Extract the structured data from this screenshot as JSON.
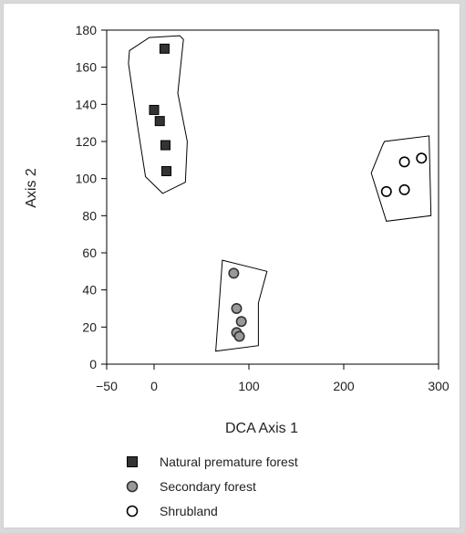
{
  "chart_data": {
    "type": "scatter",
    "title": "",
    "xlabel": "DCA Axis 1",
    "ylabel": "Axis 2",
    "xlim": [
      -50,
      300
    ],
    "ylim": [
      0,
      180
    ],
    "x_ticks": [
      -50,
      0,
      100,
      200,
      300
    ],
    "x_tick_labels": [
      "−50",
      "0",
      "100",
      "200",
      "300"
    ],
    "y_ticks": [
      0,
      20,
      40,
      60,
      80,
      100,
      120,
      140,
      160,
      180
    ],
    "y_tick_labels": [
      "0",
      "20",
      "40",
      "60",
      "80",
      "100",
      "120",
      "140",
      "160",
      "180"
    ],
    "grid": false,
    "legend_position": "bottom",
    "series": [
      {
        "name": "Natural premature forest",
        "marker": "square",
        "fill": "#333333",
        "stroke": "#000000",
        "points": [
          {
            "x": 11,
            "y": 170
          },
          {
            "x": 0,
            "y": 137
          },
          {
            "x": 6,
            "y": 131
          },
          {
            "x": 12,
            "y": 118
          },
          {
            "x": 13,
            "y": 104
          }
        ],
        "hull": [
          {
            "x": -26,
            "y": 169
          },
          {
            "x": -5,
            "y": 176
          },
          {
            "x": 27,
            "y": 177
          },
          {
            "x": 31,
            "y": 175
          },
          {
            "x": 25,
            "y": 146
          },
          {
            "x": 35,
            "y": 120
          },
          {
            "x": 33,
            "y": 98
          },
          {
            "x": 9,
            "y": 92
          },
          {
            "x": -9,
            "y": 101
          },
          {
            "x": -17,
            "y": 127
          },
          {
            "x": -27,
            "y": 162
          }
        ]
      },
      {
        "name": "Secondary forest",
        "marker": "circle",
        "fill": "#999999",
        "stroke": "#333333",
        "points": [
          {
            "x": 84,
            "y": 49
          },
          {
            "x": 87,
            "y": 30
          },
          {
            "x": 92,
            "y": 23
          },
          {
            "x": 87,
            "y": 17
          },
          {
            "x": 90,
            "y": 15
          }
        ],
        "hull": [
          {
            "x": 72,
            "y": 56
          },
          {
            "x": 119,
            "y": 50
          },
          {
            "x": 110,
            "y": 33
          },
          {
            "x": 110,
            "y": 10
          },
          {
            "x": 65,
            "y": 7
          }
        ]
      },
      {
        "name": "Shrubland",
        "marker": "circle",
        "fill": "#ffffff",
        "stroke": "#000000",
        "points": [
          {
            "x": 282,
            "y": 111
          },
          {
            "x": 264,
            "y": 109
          },
          {
            "x": 264,
            "y": 94
          },
          {
            "x": 245,
            "y": 93
          }
        ],
        "hull": [
          {
            "x": 229,
            "y": 103
          },
          {
            "x": 241,
            "y": 118
          },
          {
            "x": 243,
            "y": 120
          },
          {
            "x": 290,
            "y": 123
          },
          {
            "x": 292,
            "y": 80
          },
          {
            "x": 245,
            "y": 77
          }
        ]
      }
    ]
  }
}
